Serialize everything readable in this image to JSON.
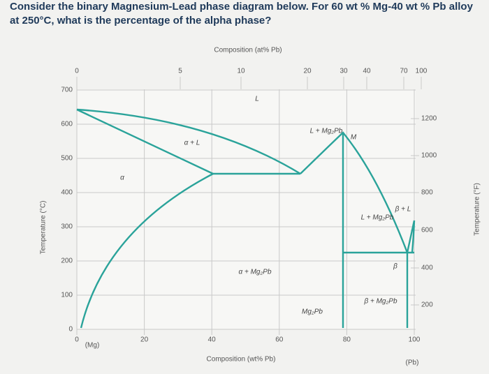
{
  "question": "Consider the binary Magnesium-Lead phase diagram below. For 60 wt % Mg-40 wt % Pb alloy at 250°C, what is the percentage of the alpha phase?",
  "diagram": {
    "top_axis": {
      "title": "Composition (at% Pb)",
      "ticks": [
        0,
        5,
        10,
        20,
        30,
        40,
        70,
        100
      ]
    },
    "bottom_axis": {
      "title": "Composition (wt% Pb)",
      "ticks": [
        0,
        20,
        40,
        60,
        80,
        100
      ],
      "left_end": "(Mg)",
      "right_end": "(Pb)"
    },
    "left_axis": {
      "title": "Temperature (°C)",
      "ticks": [
        0,
        100,
        200,
        300,
        400,
        500,
        600,
        700
      ]
    },
    "right_axis": {
      "title": "Temperature (°F)",
      "ticks": [
        200,
        400,
        600,
        800,
        1000,
        1200
      ]
    },
    "regions": [
      "L",
      "α + L",
      "α",
      "L + Mg₂Pb",
      "M",
      "L + Mg₂Pb",
      "β + L",
      "α + Mg₂Pb",
      "Mg₂Pb",
      "β + Mg₂Pb",
      "β"
    ]
  }
}
